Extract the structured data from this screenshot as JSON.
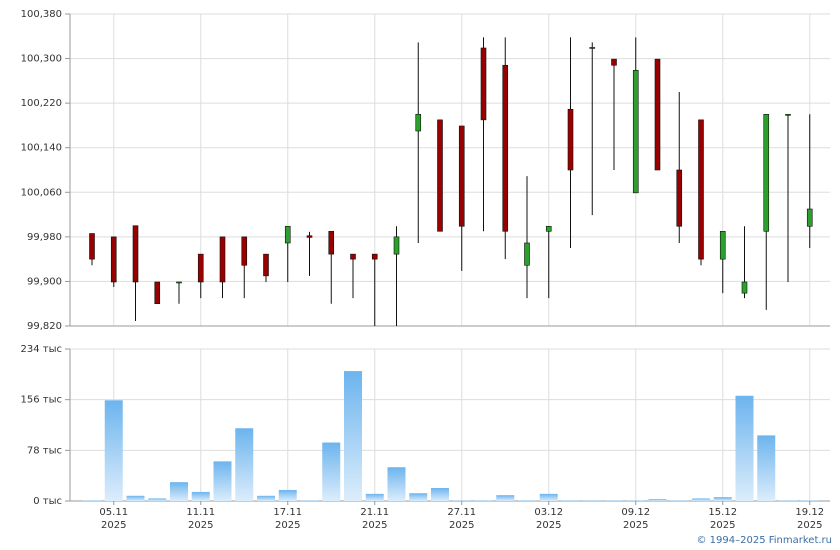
{
  "chart_data": [
    {
      "type": "candlestick",
      "categories": [
        null,
        "05.11\n2025",
        null,
        null,
        null,
        "11.11\n2025",
        null,
        null,
        null,
        "17.11\n2025",
        null,
        null,
        null,
        "21.11\n2025",
        null,
        null,
        null,
        "27.11\n2025",
        null,
        null,
        null,
        "03.12\n2025",
        null,
        null,
        null,
        "09.12\n2025",
        null,
        null,
        null,
        "15.12\n2025",
        null,
        null,
        null,
        "19.12\n2025"
      ],
      "open": [
        99986,
        99980,
        100000,
        99899,
        99899,
        99949,
        99980,
        99980,
        99949,
        99969,
        99982,
        99990,
        99949,
        99949,
        99949,
        100170,
        100190,
        100179,
        100319,
        100288,
        99929,
        99990,
        100209,
        100320,
        100299,
        100059,
        100299,
        100100,
        100190,
        99940,
        99879,
        99990,
        100200,
        99999
      ],
      "high": [
        99986,
        99980,
        100000,
        99899,
        99899,
        99949,
        99980,
        99980,
        99949,
        99999,
        99989,
        99990,
        99949,
        99949,
        99999,
        100329,
        100190,
        100179,
        100338,
        100338,
        100089,
        99999,
        100338,
        100329,
        100299,
        100338,
        100299,
        100240,
        100190,
        99990,
        99999,
        100200,
        100200,
        100200
      ],
      "low": [
        99929,
        99890,
        99829,
        99860,
        99860,
        99870,
        99870,
        99870,
        99899,
        99899,
        99910,
        99860,
        99870,
        99820,
        99820,
        99969,
        99990,
        99919,
        99990,
        99940,
        99870,
        99870,
        99960,
        100019,
        100100,
        100059,
        100100,
        99969,
        99929,
        99879,
        99870,
        99849,
        99899,
        99960
      ],
      "close": [
        99940,
        99899,
        99899,
        99860,
        99899,
        99899,
        99899,
        99929,
        99910,
        99999,
        99979,
        99949,
        99940,
        99940,
        99980,
        100200,
        99990,
        99999,
        100190,
        99990,
        99969,
        99999,
        100100,
        100320,
        100288,
        100279,
        100100,
        99999,
        99940,
        99990,
        99899,
        100200,
        100200,
        100030
      ],
      "up_color": "#2ca02c",
      "down_color": "#990000",
      "ylim": [
        99820,
        100380
      ],
      "yticks": [
        {
          "value": 99820,
          "label": "99,820"
        },
        {
          "value": 99900,
          "label": "99,900"
        },
        {
          "value": 99980,
          "label": "99,980"
        },
        {
          "value": 100060,
          "label": "100,060"
        },
        {
          "value": 100140,
          "label": "100,140"
        },
        {
          "value": 100220,
          "label": "100,220"
        },
        {
          "value": 100300,
          "label": "100,300"
        },
        {
          "value": 100380,
          "label": "100,380"
        }
      ],
      "grid": true
    },
    {
      "type": "bar",
      "values": [
        1,
        155,
        8,
        4,
        29,
        14,
        61,
        112,
        8,
        17,
        1,
        90,
        200,
        11,
        52,
        12,
        20,
        1,
        1,
        9,
        1,
        11,
        1,
        1,
        1,
        1,
        3,
        1,
        4,
        6,
        162,
        101,
        1,
        1
      ],
      "color": [
        "#6cb4ee",
        "#dcedfb"
      ],
      "ylim": [
        0,
        234
      ],
      "yticks": [
        {
          "value": 0,
          "label": "0 тыс"
        },
        {
          "value": 78,
          "label": "78 тыс"
        },
        {
          "value": 156,
          "label": "156 тыс"
        },
        {
          "value": 234,
          "label": "234 тыс"
        }
      ],
      "grid": true
    }
  ],
  "credit": "© 1994–2025 Finmarket.ru"
}
